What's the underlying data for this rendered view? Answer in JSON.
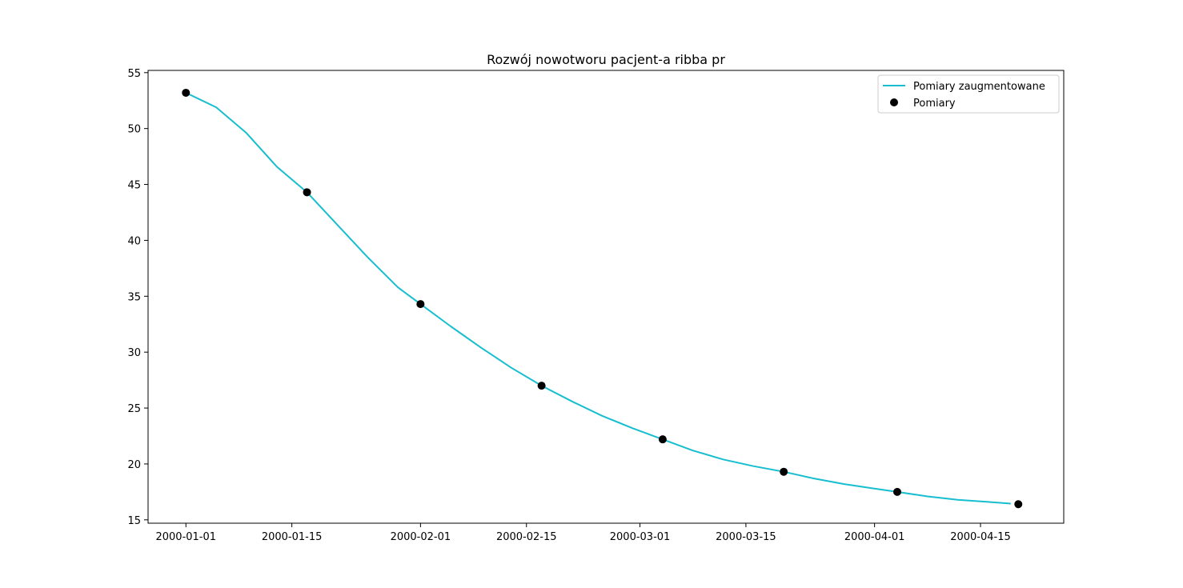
{
  "chart_data": {
    "type": "line",
    "title": "Rozwój nowotworu pacjent-a ribba pr",
    "xlabel": "",
    "ylabel": "",
    "x_axis_type": "date",
    "xlim": [
      "1999-12-27",
      "2000-04-26"
    ],
    "ylim": [
      14.7,
      55.2
    ],
    "x_ticks": [
      "2000-01-01",
      "2000-01-15",
      "2000-02-01",
      "2000-02-15",
      "2000-03-01",
      "2000-03-15",
      "2000-04-01",
      "2000-04-15"
    ],
    "y_ticks": [
      15,
      20,
      25,
      30,
      35,
      40,
      45,
      50,
      55
    ],
    "grid": false,
    "legend_position": "top-right",
    "series": [
      {
        "name": "Pomiary zaugmentowane",
        "kind": "line",
        "color": "#17becf",
        "points": [
          {
            "x": "2000-01-01",
            "y": 53.2
          },
          {
            "x": "2000-01-05",
            "y": 51.9
          },
          {
            "x": "2000-01-09",
            "y": 49.6
          },
          {
            "x": "2000-01-13",
            "y": 46.6
          },
          {
            "x": "2000-01-17",
            "y": 44.3
          },
          {
            "x": "2000-01-21",
            "y": 41.4
          },
          {
            "x": "2000-01-25",
            "y": 38.5
          },
          {
            "x": "2000-01-29",
            "y": 35.8
          },
          {
            "x": "2000-02-01",
            "y": 34.3
          },
          {
            "x": "2000-02-05",
            "y": 32.3
          },
          {
            "x": "2000-02-09",
            "y": 30.4
          },
          {
            "x": "2000-02-13",
            "y": 28.6
          },
          {
            "x": "2000-02-17",
            "y": 27.0
          },
          {
            "x": "2000-02-21",
            "y": 25.6
          },
          {
            "x": "2000-02-25",
            "y": 24.3
          },
          {
            "x": "2000-02-29",
            "y": 23.2
          },
          {
            "x": "2000-03-04",
            "y": 22.2
          },
          {
            "x": "2000-03-08",
            "y": 21.2
          },
          {
            "x": "2000-03-12",
            "y": 20.4
          },
          {
            "x": "2000-03-16",
            "y": 19.8
          },
          {
            "x": "2000-03-20",
            "y": 19.3
          },
          {
            "x": "2000-03-24",
            "y": 18.7
          },
          {
            "x": "2000-03-28",
            "y": 18.2
          },
          {
            "x": "2000-04-01",
            "y": 17.8
          },
          {
            "x": "2000-04-04",
            "y": 17.5
          },
          {
            "x": "2000-04-08",
            "y": 17.1
          },
          {
            "x": "2000-04-12",
            "y": 16.8
          },
          {
            "x": "2000-04-16",
            "y": 16.6
          },
          {
            "x": "2000-04-19",
            "y": 16.45
          }
        ]
      },
      {
        "name": "Pomiary",
        "kind": "scatter",
        "color": "#000000",
        "points": [
          {
            "x": "2000-01-01",
            "y": 53.2
          },
          {
            "x": "2000-01-17",
            "y": 44.3
          },
          {
            "x": "2000-02-01",
            "y": 34.3
          },
          {
            "x": "2000-02-17",
            "y": 27.0
          },
          {
            "x": "2000-03-04",
            "y": 22.2
          },
          {
            "x": "2000-03-20",
            "y": 19.3
          },
          {
            "x": "2000-04-04",
            "y": 17.5
          },
          {
            "x": "2000-04-20",
            "y": 16.4
          }
        ]
      }
    ]
  }
}
